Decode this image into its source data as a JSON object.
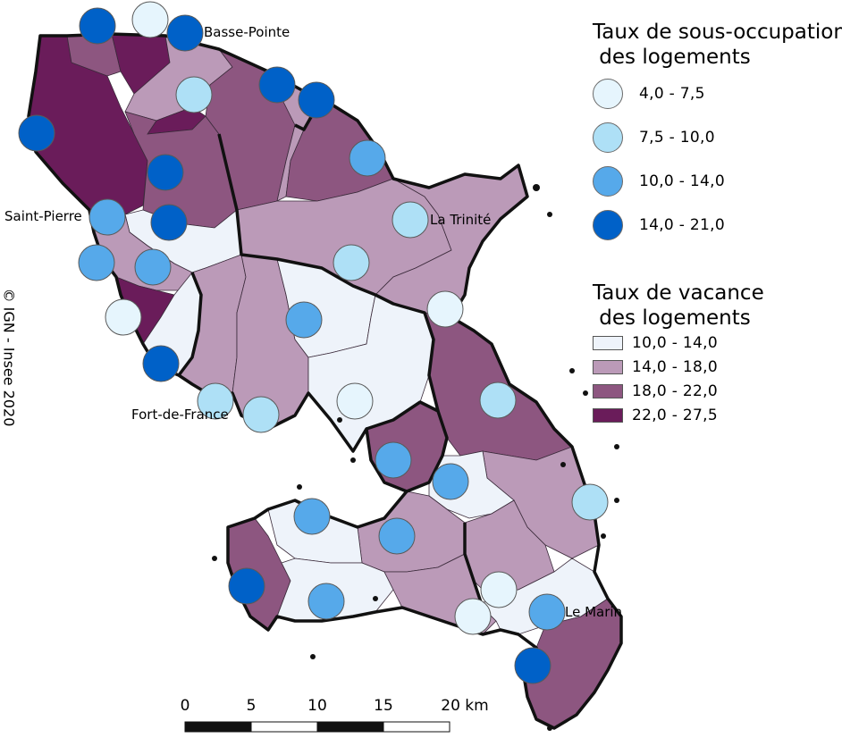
{
  "colors": {
    "vacance": [
      "#eef3fa",
      "#bb9ab8",
      "#8d5680",
      "#6a1c5a"
    ],
    "sous_occupation": [
      "#e6f5fd",
      "#aee0f6",
      "#56a9ea",
      "#0061c8"
    ]
  },
  "places": {
    "basse_pointe": "Basse-Pointe",
    "saint_pierre": "Saint-Pierre",
    "la_trinite": "La Trinité",
    "fort_de_france": "Fort-de-France",
    "le_marin": "Le Marin"
  },
  "legend_occupation": {
    "title": "Taux de sous-occupation\n des logements",
    "items": [
      "4,0 - 7,5",
      "7,5 - 10,0",
      "10,0 - 14,0",
      "14,0 - 21,0"
    ]
  },
  "legend_vacance": {
    "title": "Taux de vacance\n des logements",
    "items": [
      "10,0 - 14,0",
      "14,0 - 18,0",
      "18,0 - 22,0",
      "22,0 - 27,5"
    ]
  },
  "copyright": "© IGN - Insee 2020",
  "scalebar": {
    "ticks": [
      "0",
      "5",
      "10",
      "15",
      "20 km"
    ]
  }
}
